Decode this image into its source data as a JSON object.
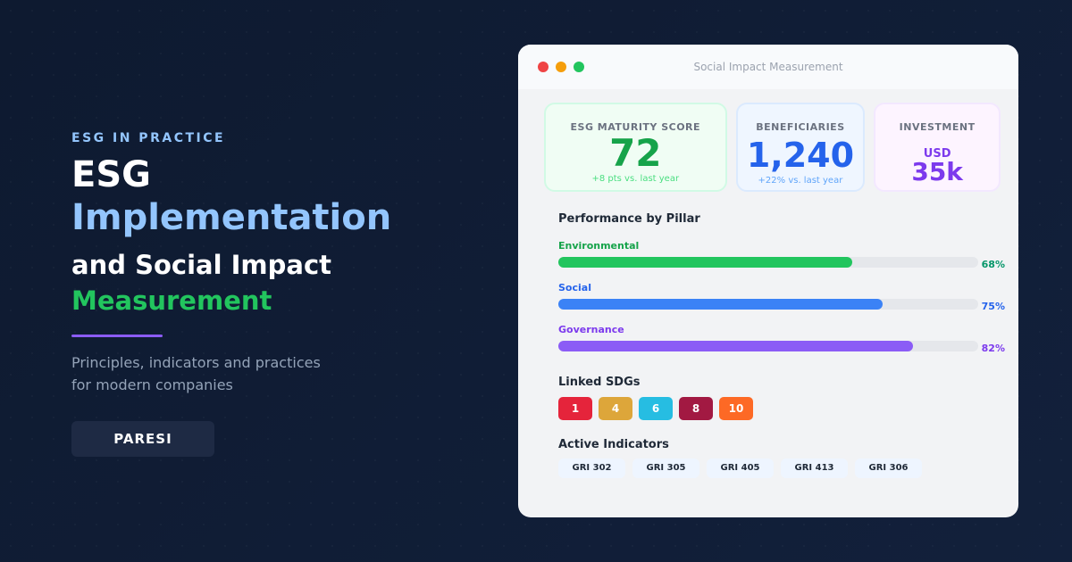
{
  "hero": {
    "eyebrow": "ESG IN PRACTICE",
    "title_1": "ESG",
    "title_2": "Implementation",
    "title_3": "and Social Impact",
    "title_4": "Measurement",
    "subtitle_1": "Principles, indicators and practices",
    "subtitle_2": "for modern companies",
    "brand": "PARESI"
  },
  "window": {
    "title": "Social Impact Measurement",
    "cards": [
      {
        "label": "ESG MATURITY SCORE",
        "value": "72",
        "sub": "+8 pts vs. last year",
        "color": "#16a34a"
      },
      {
        "label": "BENEFICIARIES",
        "value": "1,240",
        "sub": "+22% vs. last year",
        "color": "#2563eb"
      },
      {
        "label": "INVESTMENT",
        "prefix": "USD",
        "value": "35k",
        "color": "#7c3aed"
      }
    ],
    "pillars_title": "Performance by Pillar",
    "pillars": [
      {
        "name": "Environmental",
        "percent": 68,
        "label": "68%",
        "color": "#22c55e",
        "text": "#059669"
      },
      {
        "name": "Social",
        "percent": 75,
        "label": "75%",
        "color": "#3b82f6",
        "text": "#2563eb"
      },
      {
        "name": "Governance",
        "percent": 82,
        "label": "82%",
        "color": "#8b5cf6",
        "text": "#7c3aed"
      }
    ],
    "sdgs_title": "Linked SDGs",
    "sdgs": [
      {
        "n": "1",
        "color": "#e5243b"
      },
      {
        "n": "4",
        "color": "#dda63a"
      },
      {
        "n": "6",
        "color": "#26bde2"
      },
      {
        "n": "8",
        "color": "#a21942"
      },
      {
        "n": "10",
        "color": "#fd6925"
      }
    ],
    "indicators_title": "Active Indicators",
    "indicators": [
      "GRI 302",
      "GRI 305",
      "GRI 405",
      "GRI 413",
      "GRI 306"
    ]
  }
}
